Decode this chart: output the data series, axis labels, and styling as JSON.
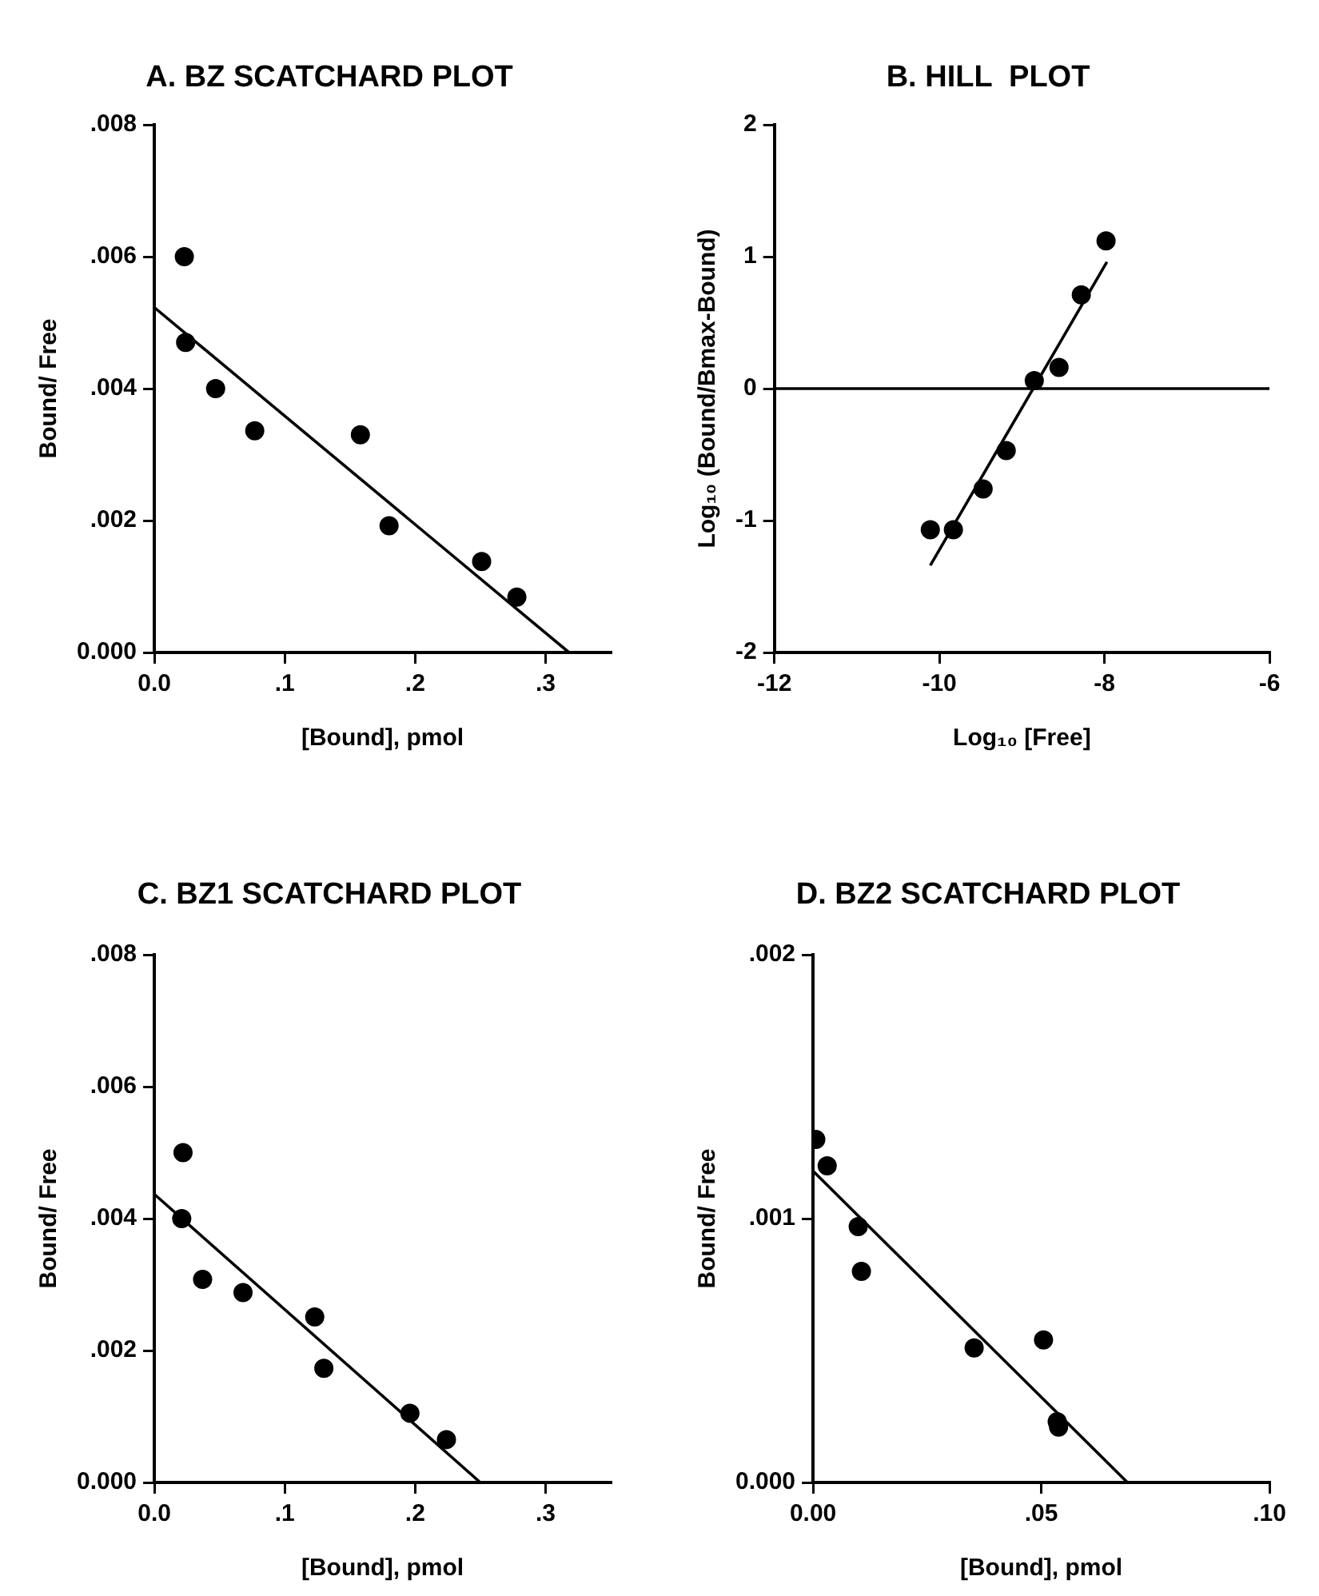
{
  "chart_data": [
    {
      "type": "scatter",
      "title": "A. BZ SCATCHARD PLOT",
      "xlabel": "[Bound], pmol",
      "ylabel": "Bound/ Free",
      "xlim": [
        0,
        0.35
      ],
      "ylim": [
        0,
        0.008
      ],
      "xticks": [
        {
          "value": 0,
          "label": "0.0"
        },
        {
          "value": 0.1,
          "label": ".1"
        },
        {
          "value": 0.2,
          "label": ".2"
        },
        {
          "value": 0.3,
          "label": ".3"
        }
      ],
      "yticks": [
        {
          "value": 0,
          "label": "0.000"
        },
        {
          "value": 0.002,
          "label": ".002"
        },
        {
          "value": 0.004,
          "label": ".004"
        },
        {
          "value": 0.006,
          "label": ".006"
        },
        {
          "value": 0.008,
          "label": ".008"
        }
      ],
      "grid": false,
      "legend": false,
      "marker": "circle",
      "series": [
        {
          "type": "scatter",
          "color": "#000000",
          "x": [
            0.023,
            0.024,
            0.047,
            0.077,
            0.158,
            0.18,
            0.251,
            0.278
          ],
          "values": [
            0.006,
            0.0047,
            0.004,
            0.00336,
            0.0033,
            0.00192,
            0.00138,
            0.00084
          ]
        },
        {
          "type": "line",
          "color": "#000000",
          "marker": "none",
          "x": [
            0,
            0.318
          ],
          "values": [
            0.00523,
            0
          ]
        }
      ]
    },
    {
      "type": "scatter",
      "title": "B. HILL  PLOT",
      "xlabel": "Log₁₀ [Free]",
      "ylabel": "Log₁₀ (Bound/Bmax-Bound)",
      "xlim": [
        -12,
        -6
      ],
      "ylim": [
        -2,
        2
      ],
      "xticks": [
        -12,
        -10,
        -8,
        -6
      ],
      "yticks": [
        -2,
        -1,
        0,
        1,
        2
      ],
      "grid": false,
      "legend": false,
      "marker": "circle",
      "series": [
        {
          "type": "scatter",
          "color": "#000000",
          "x": [
            -10.11,
            -9.83,
            -9.47,
            -9.19,
            -8.85,
            -8.55,
            -8.28,
            -7.98
          ],
          "values": [
            -1.07,
            -1.07,
            -0.76,
            -0.47,
            0.06,
            0.16,
            0.71,
            1.12
          ]
        },
        {
          "type": "line",
          "color": "#000000",
          "marker": "none",
          "x": [
            -10.11,
            -7.97
          ],
          "values": [
            -1.34,
            0.96
          ]
        }
      ],
      "ref_lines": [
        {
          "axis": "y",
          "value": 0,
          "color": "#000000"
        }
      ]
    },
    {
      "type": "scatter",
      "title": "C. BZ1 SCATCHARD PLOT",
      "xlabel": "[Bound], pmol",
      "ylabel": "Bound/ Free",
      "xlim": [
        0,
        0.35
      ],
      "ylim": [
        0,
        0.008
      ],
      "xticks": [
        {
          "value": 0,
          "label": "0.0"
        },
        {
          "value": 0.1,
          "label": ".1"
        },
        {
          "value": 0.2,
          "label": ".2"
        },
        {
          "value": 0.3,
          "label": ".3"
        }
      ],
      "yticks": [
        {
          "value": 0,
          "label": "0.000"
        },
        {
          "value": 0.002,
          "label": ".002"
        },
        {
          "value": 0.004,
          "label": ".004"
        },
        {
          "value": 0.006,
          "label": ".006"
        },
        {
          "value": 0.008,
          "label": ".008"
        }
      ],
      "grid": false,
      "legend": false,
      "marker": "circle",
      "series": [
        {
          "type": "scatter",
          "color": "#000000",
          "x": [
            0.022,
            0.021,
            0.037,
            0.068,
            0.123,
            0.13,
            0.196,
            0.224
          ],
          "values": [
            0.005,
            0.004,
            0.00308,
            0.00288,
            0.00251,
            0.00173,
            0.00105,
            0.00065
          ]
        },
        {
          "type": "line",
          "color": "#000000",
          "marker": "none",
          "x": [
            0,
            0.25
          ],
          "values": [
            0.00437,
            0
          ]
        }
      ]
    },
    {
      "type": "scatter",
      "title": "D. BZ2 SCATCHARD PLOT",
      "xlabel": "[Bound], pmol",
      "ylabel": "Bound/ Free",
      "xlim": [
        0,
        0.1
      ],
      "ylim": [
        0,
        0.002
      ],
      "xticks": [
        {
          "value": 0,
          "label": "0.00"
        },
        {
          "value": 0.05,
          "label": ".05"
        },
        {
          "value": 0.1,
          "label": ".10"
        }
      ],
      "yticks": [
        {
          "value": 0,
          "label": "0.000"
        },
        {
          "value": 0.001,
          "label": ".001"
        },
        {
          "value": 0.002,
          "label": ".002"
        }
      ],
      "grid": false,
      "legend": false,
      "marker": "circle",
      "series": [
        {
          "type": "scatter",
          "color": "#000000",
          "x": [
            0.0006,
            0.0031,
            0.0099,
            0.0106,
            0.0353,
            0.0505,
            0.0535,
            0.0538
          ],
          "values": [
            0.0013,
            0.0012,
            0.00097,
            0.0008,
            0.00051,
            0.00054,
            0.00023,
            0.00021
          ]
        },
        {
          "type": "line",
          "color": "#000000",
          "marker": "none",
          "x": [
            0,
            0.0689
          ],
          "values": [
            0.00118,
            0
          ]
        }
      ]
    }
  ]
}
